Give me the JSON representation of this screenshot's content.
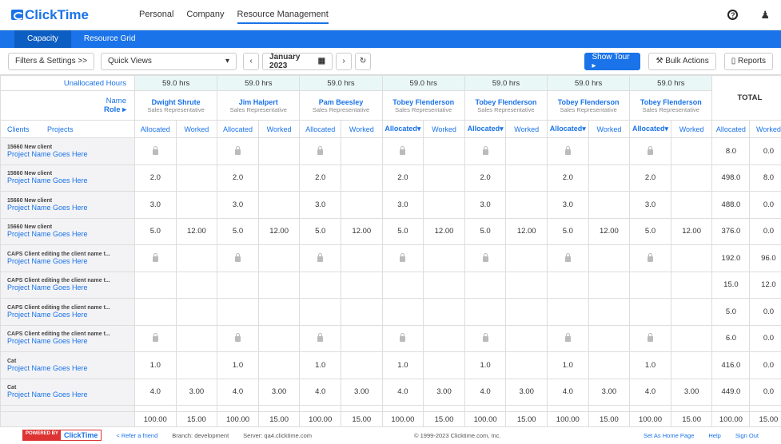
{
  "app": {
    "logo": "ClickTime",
    "nav": [
      "Personal",
      "Company",
      "Resource Management"
    ],
    "help_icon": "?",
    "user_icon": "user"
  },
  "tabs": [
    "Capacity",
    "Resource Grid"
  ],
  "toolbar": {
    "filters": "Filters & Settings >>",
    "quick_views": "Quick Views",
    "month": "January 2023",
    "show_tour": "Show Tour ▸",
    "bulk_actions": "Bulk Actions",
    "reports": "Reports"
  },
  "grid": {
    "unallocated_label": "Unallocated Hours",
    "name_label": "Name",
    "role_label": "Role ▸",
    "clients_label": "Clients",
    "projects_label": "Projects",
    "total_label": "TOTAL",
    "people": [
      {
        "hours": "59.0 hrs",
        "name": "Dwight Shrute",
        "role": "Sales Representative"
      },
      {
        "hours": "59.0 hrs",
        "name": "Jim Halpert",
        "role": "Sales Representative"
      },
      {
        "hours": "59.0 hrs",
        "name": "Pam Beesley",
        "role": "Sales Representative"
      },
      {
        "hours": "59.0 hrs",
        "name": "Tobey Flenderson",
        "role": "Sales Representative"
      },
      {
        "hours": "59.0 hrs",
        "name": "Tobey Flenderson",
        "role": "Sales Representative"
      },
      {
        "hours": "59.0 hrs",
        "name": "Tobey Flenderson",
        "role": "Sales Representative"
      },
      {
        "hours": "59.0 hrs",
        "name": "Tobey Flenderson",
        "role": "Sales Representative"
      }
    ],
    "col_heads": [
      "Allocated",
      "Allocated",
      "Allocated",
      "Allocated▾",
      "Allocated▾",
      "Allocated▾",
      "Allocated▾"
    ],
    "worked_label": "Worked",
    "total_heads": [
      "Allocated",
      "Worked"
    ],
    "rows": [
      {
        "client": "15660 New client",
        "project": "Project Name Goes Here",
        "cells": [
          "L",
          "",
          "L",
          "",
          "L",
          "",
          "L",
          "",
          "L",
          "",
          "L",
          "",
          "L",
          ""
        ],
        "total": [
          "8.0",
          "0.0"
        ]
      },
      {
        "client": "15660 New client",
        "project": "Project Name Goes Here",
        "cells": [
          "2.0",
          "",
          "2.0",
          "",
          "2.0",
          "",
          "2.0",
          "",
          "2.0",
          "",
          "2.0",
          "",
          "2.0",
          ""
        ],
        "total": [
          "498.0",
          "8.0"
        ]
      },
      {
        "client": "15660 New client",
        "project": "Project Name Goes Here",
        "cells": [
          "3.0",
          "",
          "3.0",
          "",
          "3.0",
          "",
          "3.0",
          "",
          "3.0",
          "",
          "3.0",
          "",
          "3.0",
          ""
        ],
        "total": [
          "488.0",
          "0.0"
        ]
      },
      {
        "client": "15660 New client",
        "project": "Project Name Goes Here",
        "cells": [
          "5.0",
          "12.00",
          "5.0",
          "12.00",
          "5.0",
          "12.00",
          "5.0",
          "12.00",
          "5.0",
          "12.00",
          "5.0",
          "12.00",
          "5.0",
          "12.00"
        ],
        "total": [
          "376.0",
          "0.0"
        ]
      },
      {
        "client": "CAPS Client editing the client name t...",
        "project": "Project Name Goes Here",
        "cells": [
          "L",
          "",
          "L",
          "",
          "L",
          "",
          "L",
          "",
          "L",
          "",
          "L",
          "",
          "L",
          ""
        ],
        "total": [
          "192.0",
          "96.0"
        ]
      },
      {
        "client": "CAPS Client editing the client name t...",
        "project": "Project Name Goes Here",
        "cells": [
          "",
          "",
          "",
          "",
          "",
          "",
          "",
          "",
          "",
          "",
          "",
          "",
          "",
          ""
        ],
        "total": [
          "15.0",
          "12.0"
        ]
      },
      {
        "client": "CAPS Client editing the client name t...",
        "project": "Project Name Goes Here",
        "cells": [
          "",
          "",
          "",
          "",
          "",
          "",
          "",
          "",
          "",
          "",
          "",
          "",
          "",
          ""
        ],
        "total": [
          "5.0",
          "0.0"
        ]
      },
      {
        "client": "CAPS Client editing the client name t...",
        "project": "Project Name Goes Here",
        "cells": [
          "L",
          "",
          "L",
          "",
          "L",
          "",
          "L",
          "",
          "L",
          "",
          "L",
          "",
          "L",
          ""
        ],
        "total": [
          "6.0",
          "0.0"
        ]
      },
      {
        "client": "Cat",
        "project": "Project Name Goes Here",
        "cells": [
          "1.0",
          "",
          "1.0",
          "",
          "1.0",
          "",
          "1.0",
          "",
          "1.0",
          "",
          "1.0",
          "",
          "1.0",
          ""
        ],
        "total": [
          "416.0",
          "0.0"
        ]
      },
      {
        "client": "Cat",
        "project": "Project Name Goes Here",
        "cells": [
          "4.0",
          "3.00",
          "4.0",
          "3.00",
          "4.0",
          "3.00",
          "4.0",
          "3.00",
          "4.0",
          "3.00",
          "4.0",
          "3.00",
          "4.0",
          "3.00"
        ],
        "total": [
          "449.0",
          "0.0"
        ]
      }
    ],
    "footer_totals": [
      "100.00",
      "15.00",
      "100.00",
      "15.00",
      "100.00",
      "15.00",
      "100.00",
      "15.00",
      "100.00",
      "15.00",
      "100.00",
      "15.00",
      "100.00",
      "15.00",
      "100.00",
      "15.00"
    ]
  },
  "footer": {
    "powered": "POWERED BY",
    "brand": "ClickTime",
    "refer": "< Refer a friend",
    "branch": "Branch: development",
    "server": "Server: qa4.clicktime.com",
    "copyright": "© 1999-2023 Clicktime.com, Inc.",
    "home": "Set As Home Page",
    "help": "Help",
    "signout": "Sign Out"
  }
}
